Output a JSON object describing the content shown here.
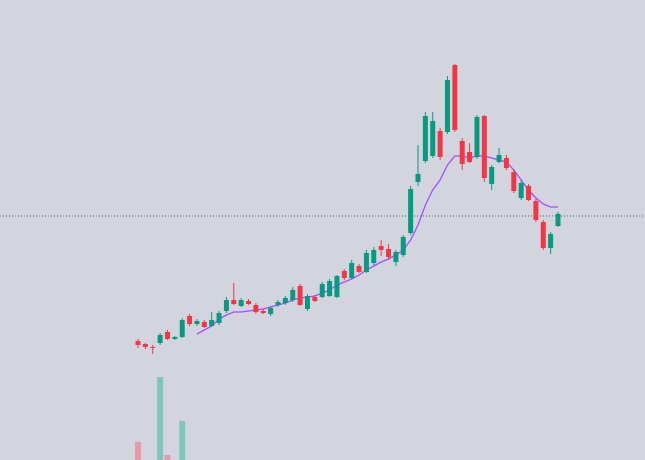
{
  "chart_data": {
    "type": "candlestick",
    "up_color": "#089981",
    "down_color": "#f23645",
    "up_volume_color": "#7fc4bd",
    "down_volume_color": "#e89aa2",
    "ma_color": "#a64dff",
    "price_line_color": "#2e6b6b",
    "background": "#d3d5de",
    "ylim": [
      0,
      460
    ],
    "volume_lim": [
      0,
      100
    ],
    "price_line": 244,
    "open": [
      119,
      116,
      113,
      117,
      128,
      121,
      123,
      144,
      136,
      138,
      134,
      137,
      149,
      160,
      154,
      159,
      155,
      149,
      146,
      155,
      157,
      160,
      174,
      151,
      163,
      163,
      164,
      163,
      189,
      182,
      194,
      188,
      197,
      214,
      211,
      198,
      205,
      227,
      278,
      299,
      304,
      329,
      328,
      395,
      319,
      308,
      303,
      344,
      276,
      298,
      302,
      288,
      262,
      274,
      259,
      238,
      212,
      234
    ],
    "high": [
      121,
      117,
      115,
      127,
      130,
      124,
      142,
      146,
      141,
      140,
      148,
      149,
      163,
      177,
      162,
      161,
      157,
      151,
      154,
      160,
      164,
      173,
      176,
      166,
      165,
      178,
      181,
      185,
      191,
      200,
      196,
      210,
      213,
      220,
      216,
      210,
      225,
      274,
      315,
      348,
      348,
      332,
      384,
      396,
      322,
      317,
      345,
      345,
      295,
      312,
      305,
      291,
      280,
      276,
      261,
      240,
      228,
      248
    ],
    "low": [
      112,
      111,
      106,
      115,
      120,
      120,
      122,
      134,
      134,
      132,
      133,
      135,
      147,
      155,
      153,
      155,
      146,
      146,
      144,
      153,
      155,
      158,
      154,
      149,
      158,
      162,
      163,
      162,
      180,
      181,
      187,
      187,
      195,
      204,
      200,
      194,
      203,
      225,
      274,
      297,
      302,
      300,
      326,
      328,
      290,
      297,
      301,
      278,
      270,
      297,
      290,
      267,
      260,
      259,
      238,
      210,
      206,
      233
    ],
    "close": [
      115,
      113,
      112,
      125,
      121,
      123,
      140,
      136,
      139,
      133,
      140,
      147,
      160,
      156,
      160,
      156,
      148,
      147,
      152,
      158,
      162,
      170,
      155,
      164,
      159,
      176,
      179,
      184,
      182,
      197,
      188,
      207,
      210,
      210,
      203,
      208,
      223,
      271,
      286,
      344,
      339,
      303,
      380,
      330,
      296,
      298,
      343,
      282,
      293,
      305,
      292,
      269,
      277,
      260,
      240,
      212,
      226,
      246
    ],
    "ma": [
      null,
      null,
      null,
      null,
      null,
      null,
      null,
      null,
      126,
      130,
      134,
      141,
      145,
      148,
      148,
      149,
      150,
      151,
      153,
      155,
      157,
      160,
      162,
      163,
      164,
      167,
      170,
      175,
      178,
      181,
      185,
      190,
      194,
      198,
      201,
      205,
      210,
      220,
      235,
      255,
      270,
      280,
      295,
      304,
      304,
      302,
      304,
      304,
      302,
      300,
      298,
      290,
      280,
      270,
      262,
      256,
      253,
      253
    ],
    "volume": [
      18,
      null,
      null,
      83,
      5,
      null,
      39,
      null,
      null,
      null,
      null,
      null,
      null,
      null,
      null,
      null,
      null,
      null,
      null,
      null,
      null,
      null,
      null,
      null,
      null,
      null,
      null,
      null,
      null,
      null,
      null,
      null,
      null,
      null,
      null,
      null,
      null,
      null,
      null,
      null,
      null,
      null,
      null,
      null,
      null,
      null,
      null,
      null,
      null,
      null,
      null,
      null,
      null,
      null,
      null,
      null,
      null,
      null
    ]
  }
}
